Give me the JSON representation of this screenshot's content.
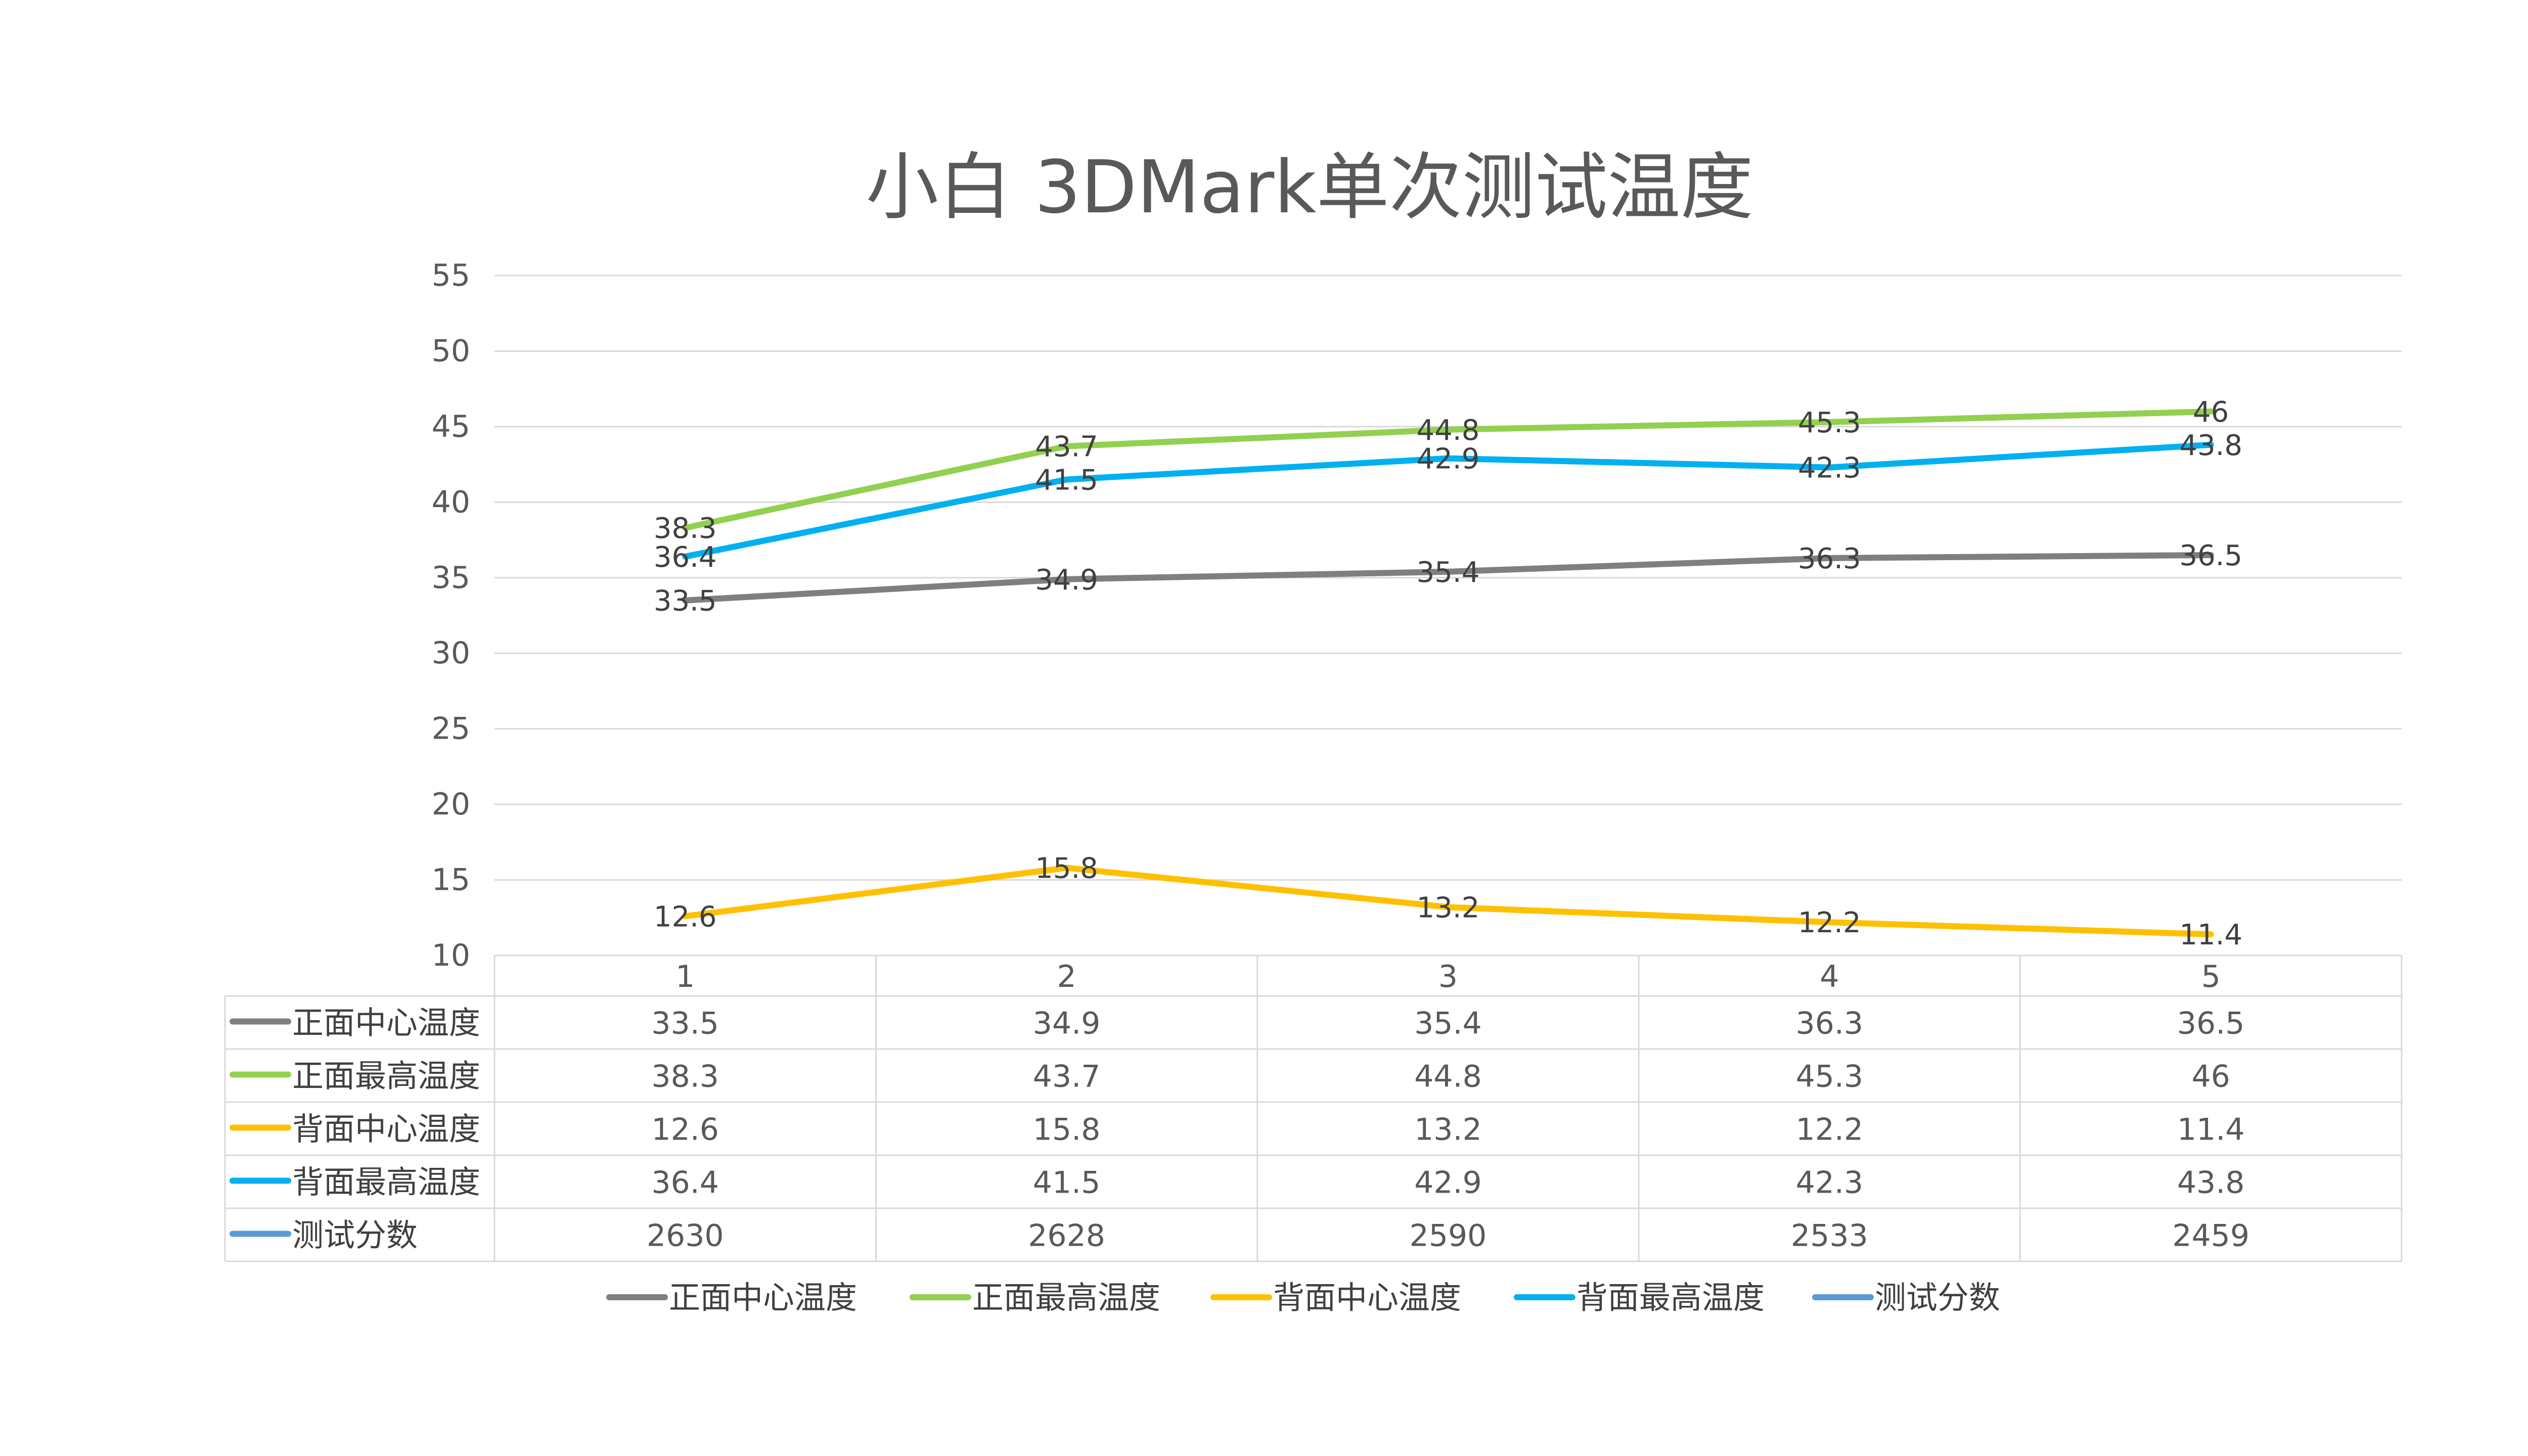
{
  "chart_data": {
    "type": "line",
    "title": "小白 3DMark单次测试温度",
    "categories": [
      "1",
      "2",
      "3",
      "4",
      "5"
    ],
    "ylim": [
      10,
      55
    ],
    "yticks": [
      10,
      15,
      20,
      25,
      30,
      35,
      40,
      45,
      50,
      55
    ],
    "grid": true,
    "legend_position": "bottom",
    "series": [
      {
        "name": "正面中心温度",
        "values": [
          33.5,
          34.9,
          35.4,
          36.3,
          36.5
        ],
        "color": "#7f7f7f",
        "plotted": true
      },
      {
        "name": "正面最高温度",
        "values": [
          38.3,
          43.7,
          44.8,
          45.3,
          46
        ],
        "color": "#92d050",
        "plotted": true
      },
      {
        "name": "背面中心温度",
        "values": [
          12.6,
          15.8,
          13.2,
          12.2,
          11.4
        ],
        "color": "#ffc000",
        "plotted": true
      },
      {
        "name": "背面最高温度",
        "values": [
          36.4,
          41.5,
          42.9,
          42.3,
          43.8
        ],
        "color": "#00b0f0",
        "plotted": true
      },
      {
        "name": "测试分数",
        "values": [
          2630,
          2628,
          2590,
          2533,
          2459
        ],
        "color": "#5b9bd5",
        "plotted": false
      }
    ]
  }
}
